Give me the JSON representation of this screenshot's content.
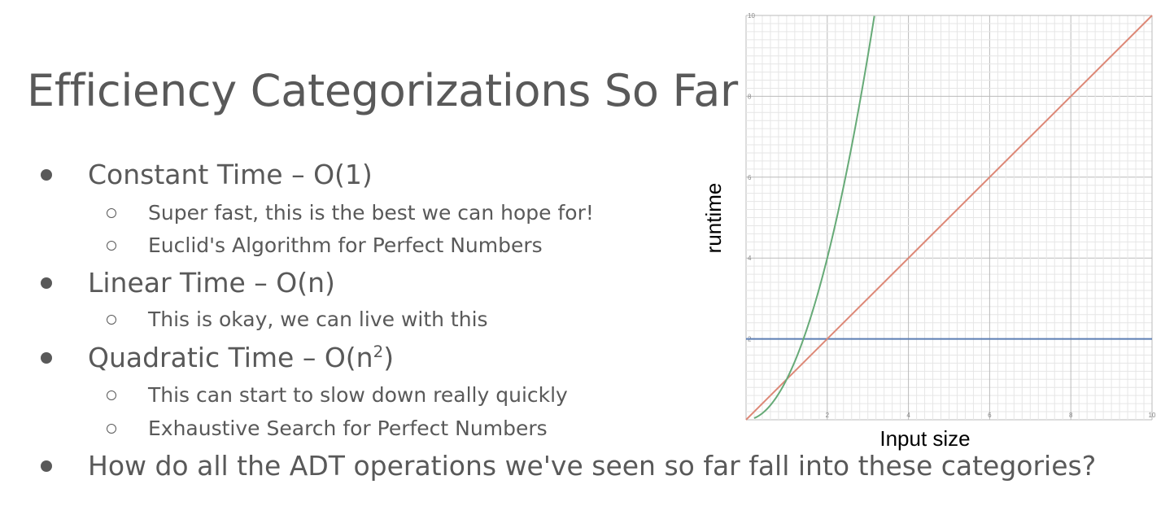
{
  "slide": {
    "title": "Efficiency Categorizations So Far",
    "bullets": [
      {
        "text": "Constant Time – O(1)",
        "sub": [
          "Super fast, this is the best we can hope for!",
          "Euclid's Algorithm for Perfect Numbers"
        ]
      },
      {
        "text": "Linear Time – O(n)",
        "sub": [
          "This is okay, we can live with this"
        ]
      },
      {
        "text_prefix": "Quadratic Time – O(n",
        "text_sup": "2",
        "text_suffix": ")",
        "sub": [
          "This can start to slow down really quickly",
          "Exhaustive Search for Perfect Numbers"
        ]
      },
      {
        "text": "How do all the ADT operations we've seen so far fall into these categories?",
        "sub": []
      }
    ]
  },
  "chart_data": {
    "type": "line",
    "xlabel": "Input size",
    "ylabel": "runtime",
    "xlim": [
      0,
      10
    ],
    "ylim": [
      0,
      10
    ],
    "x_ticks": [
      "2",
      "4",
      "6",
      "8",
      "10"
    ],
    "y_ticks": [
      "2",
      "4",
      "6",
      "8",
      "10"
    ],
    "grid": true,
    "series": [
      {
        "color": "#5b7db3",
        "x": [
          0,
          10
        ],
        "y": [
          2,
          2
        ]
      },
      {
        "color": "#dd8877",
        "x": [
          0,
          10
        ],
        "y": [
          0,
          10
        ]
      },
      {
        "color": "#66aa77",
        "x": [
          0.2,
          0.6,
          1.0,
          1.4,
          1.8,
          2.2,
          2.6,
          3.0,
          3.16
        ],
        "y": [
          0.04,
          0.36,
          1.0,
          1.96,
          3.24,
          4.84,
          6.76,
          9.0,
          10.0
        ]
      }
    ]
  }
}
